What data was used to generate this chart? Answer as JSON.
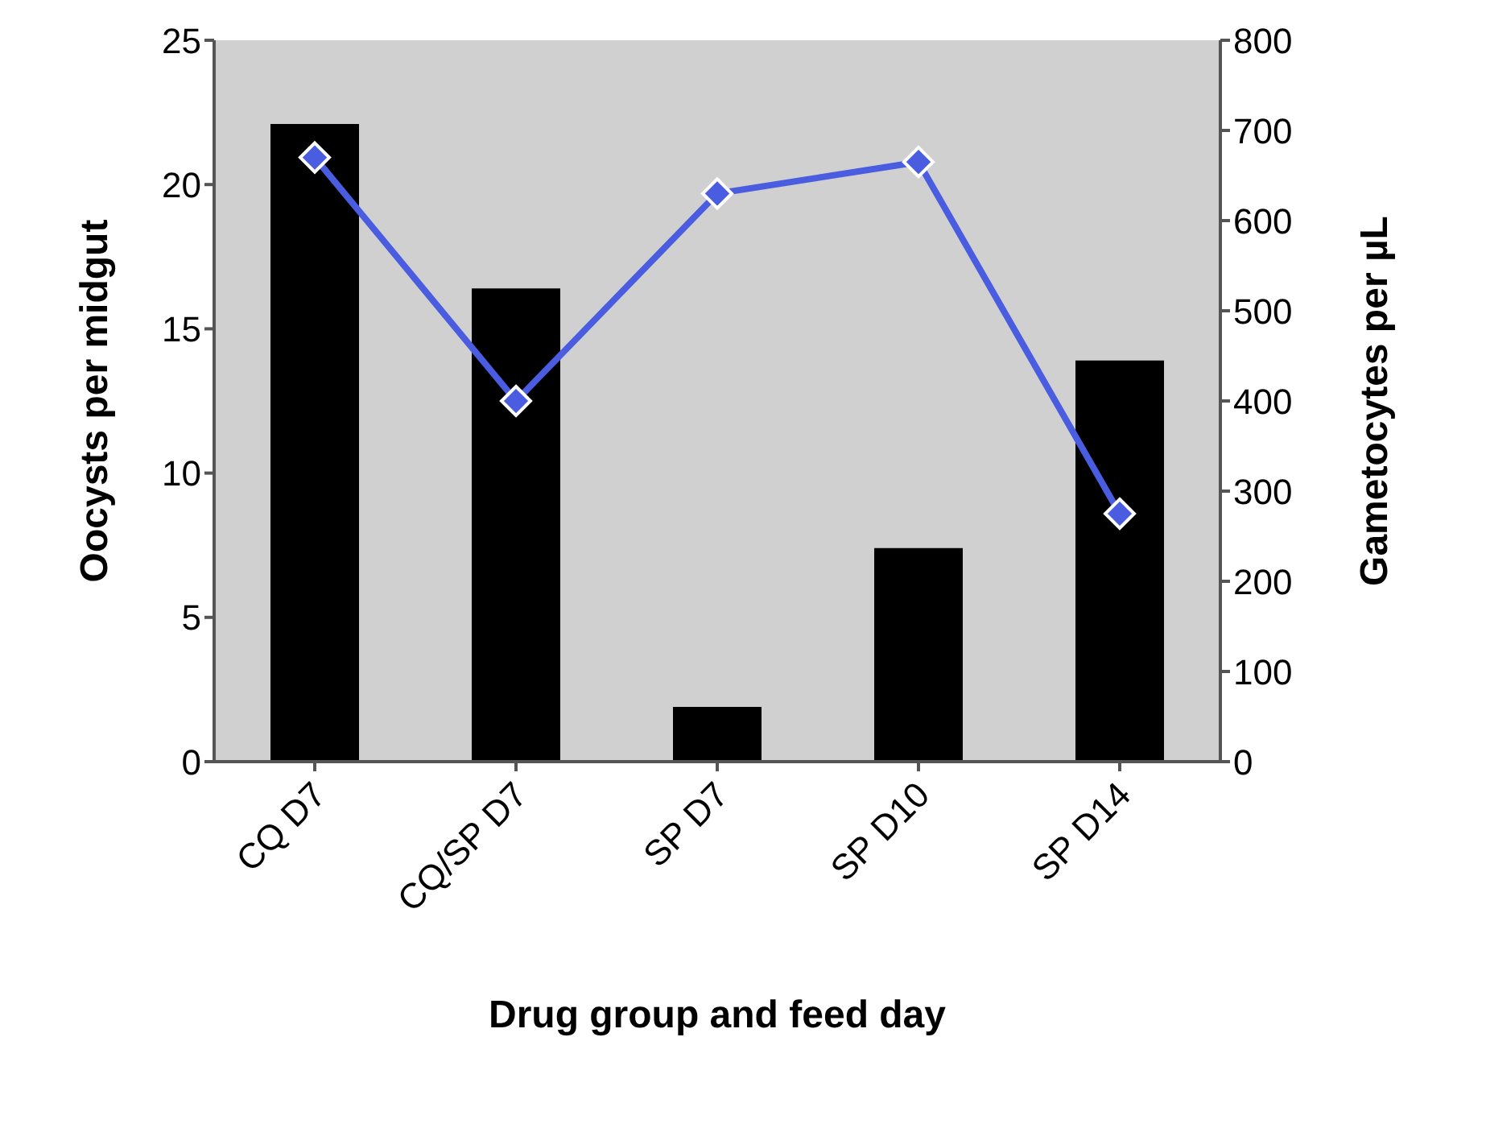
{
  "chart_data": {
    "type": "bar",
    "xlabel": "Drug group and feed day",
    "ylabel": "Oocysts per midgut",
    "y2label": "Gametocytes per µL",
    "categories": [
      "CQ D7",
      "CQ/SP D7",
      "SP D7",
      "SP D10",
      "SP D14"
    ],
    "series": [
      {
        "color": "#000000",
        "values": [
          22.1,
          16.4,
          1.9,
          7.4,
          13.9
        ]
      },
      {
        "type": "line",
        "axis": "y2",
        "color": "#4a5de0",
        "marker": "diamond",
        "values": [
          670,
          400,
          630,
          665,
          275
        ]
      }
    ],
    "ylim": [
      0,
      25
    ],
    "yticks": [
      0,
      5,
      10,
      15,
      20,
      25
    ],
    "y2lim": [
      0,
      800
    ],
    "y2ticks": [
      0,
      100,
      200,
      300,
      400,
      500,
      600,
      700,
      800
    ],
    "grid": false,
    "legend": false
  }
}
